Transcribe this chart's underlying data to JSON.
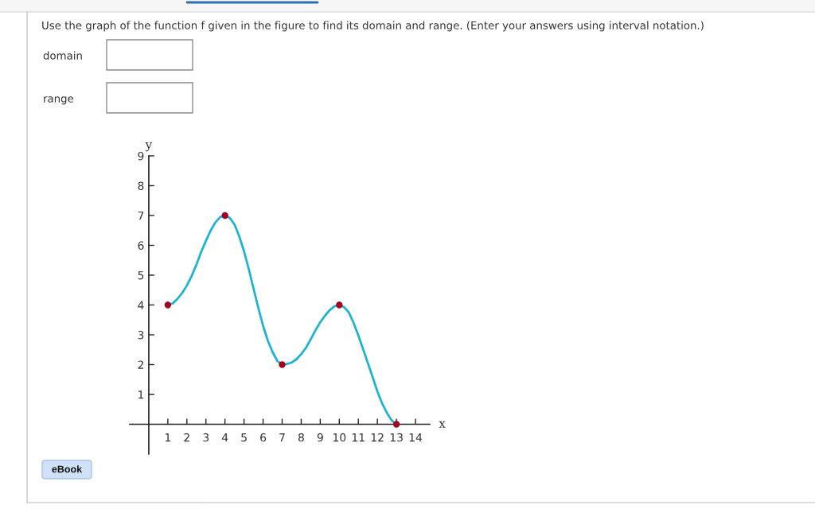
{
  "chart_data": {
    "type": "line",
    "title": "Use the graph of the function f given in the figure to find its domain and range. (Enter your answers using interval notation.)",
    "xlabel": "x",
    "ylabel": "y",
    "x": [
      1,
      1.25,
      1.5,
      1.75,
      2,
      2.25,
      2.5,
      2.75,
      3,
      3.25,
      3.5,
      3.75,
      4,
      4.25,
      4.5,
      4.75,
      5,
      5.25,
      5.5,
      5.75,
      6,
      6.25,
      6.5,
      6.75,
      7,
      7.25,
      7.5,
      7.75,
      8,
      8.25,
      8.5,
      8.75,
      9,
      9.25,
      9.5,
      9.75,
      10,
      10.25,
      10.5,
      10.75,
      11,
      11.25,
      11.5,
      11.75,
      12,
      12.25,
      12.5,
      12.75,
      13
    ],
    "series": [
      {
        "color": "#1db3d3",
        "values": [
          4,
          4.05,
          4.2,
          4.4,
          4.65,
          4.97,
          5.35,
          5.78,
          6.15,
          6.5,
          6.77,
          6.95,
          7,
          6.92,
          6.7,
          6.3,
          5.8,
          5.2,
          4.55,
          3.9,
          3.3,
          2.8,
          2.42,
          2.12,
          2,
          2.02,
          2.07,
          2.18,
          2.35,
          2.56,
          2.85,
          3.15,
          3.42,
          3.64,
          3.83,
          3.96,
          4,
          3.93,
          3.75,
          3.4,
          2.98,
          2.52,
          2.05,
          1.58,
          1.1,
          0.7,
          0.38,
          0.13,
          0
        ]
      },
      {
        "type": "scatter",
        "color": "#a6001f",
        "x": [
          1,
          4,
          7,
          10,
          13
        ],
        "values": [
          4,
          7,
          2,
          4,
          0
        ]
      }
    ],
    "xlim": [
      -1,
      14.75
    ],
    "ylim": [
      -1,
      9
    ],
    "xticks": [
      1,
      2,
      3,
      4,
      5,
      6,
      7,
      8,
      9,
      10,
      11,
      12,
      13,
      14
    ],
    "yticks": [
      1,
      2,
      3,
      4,
      5,
      6,
      7,
      8,
      9
    ],
    "annotations": [
      "domain",
      "range",
      "eBook"
    ]
  }
}
